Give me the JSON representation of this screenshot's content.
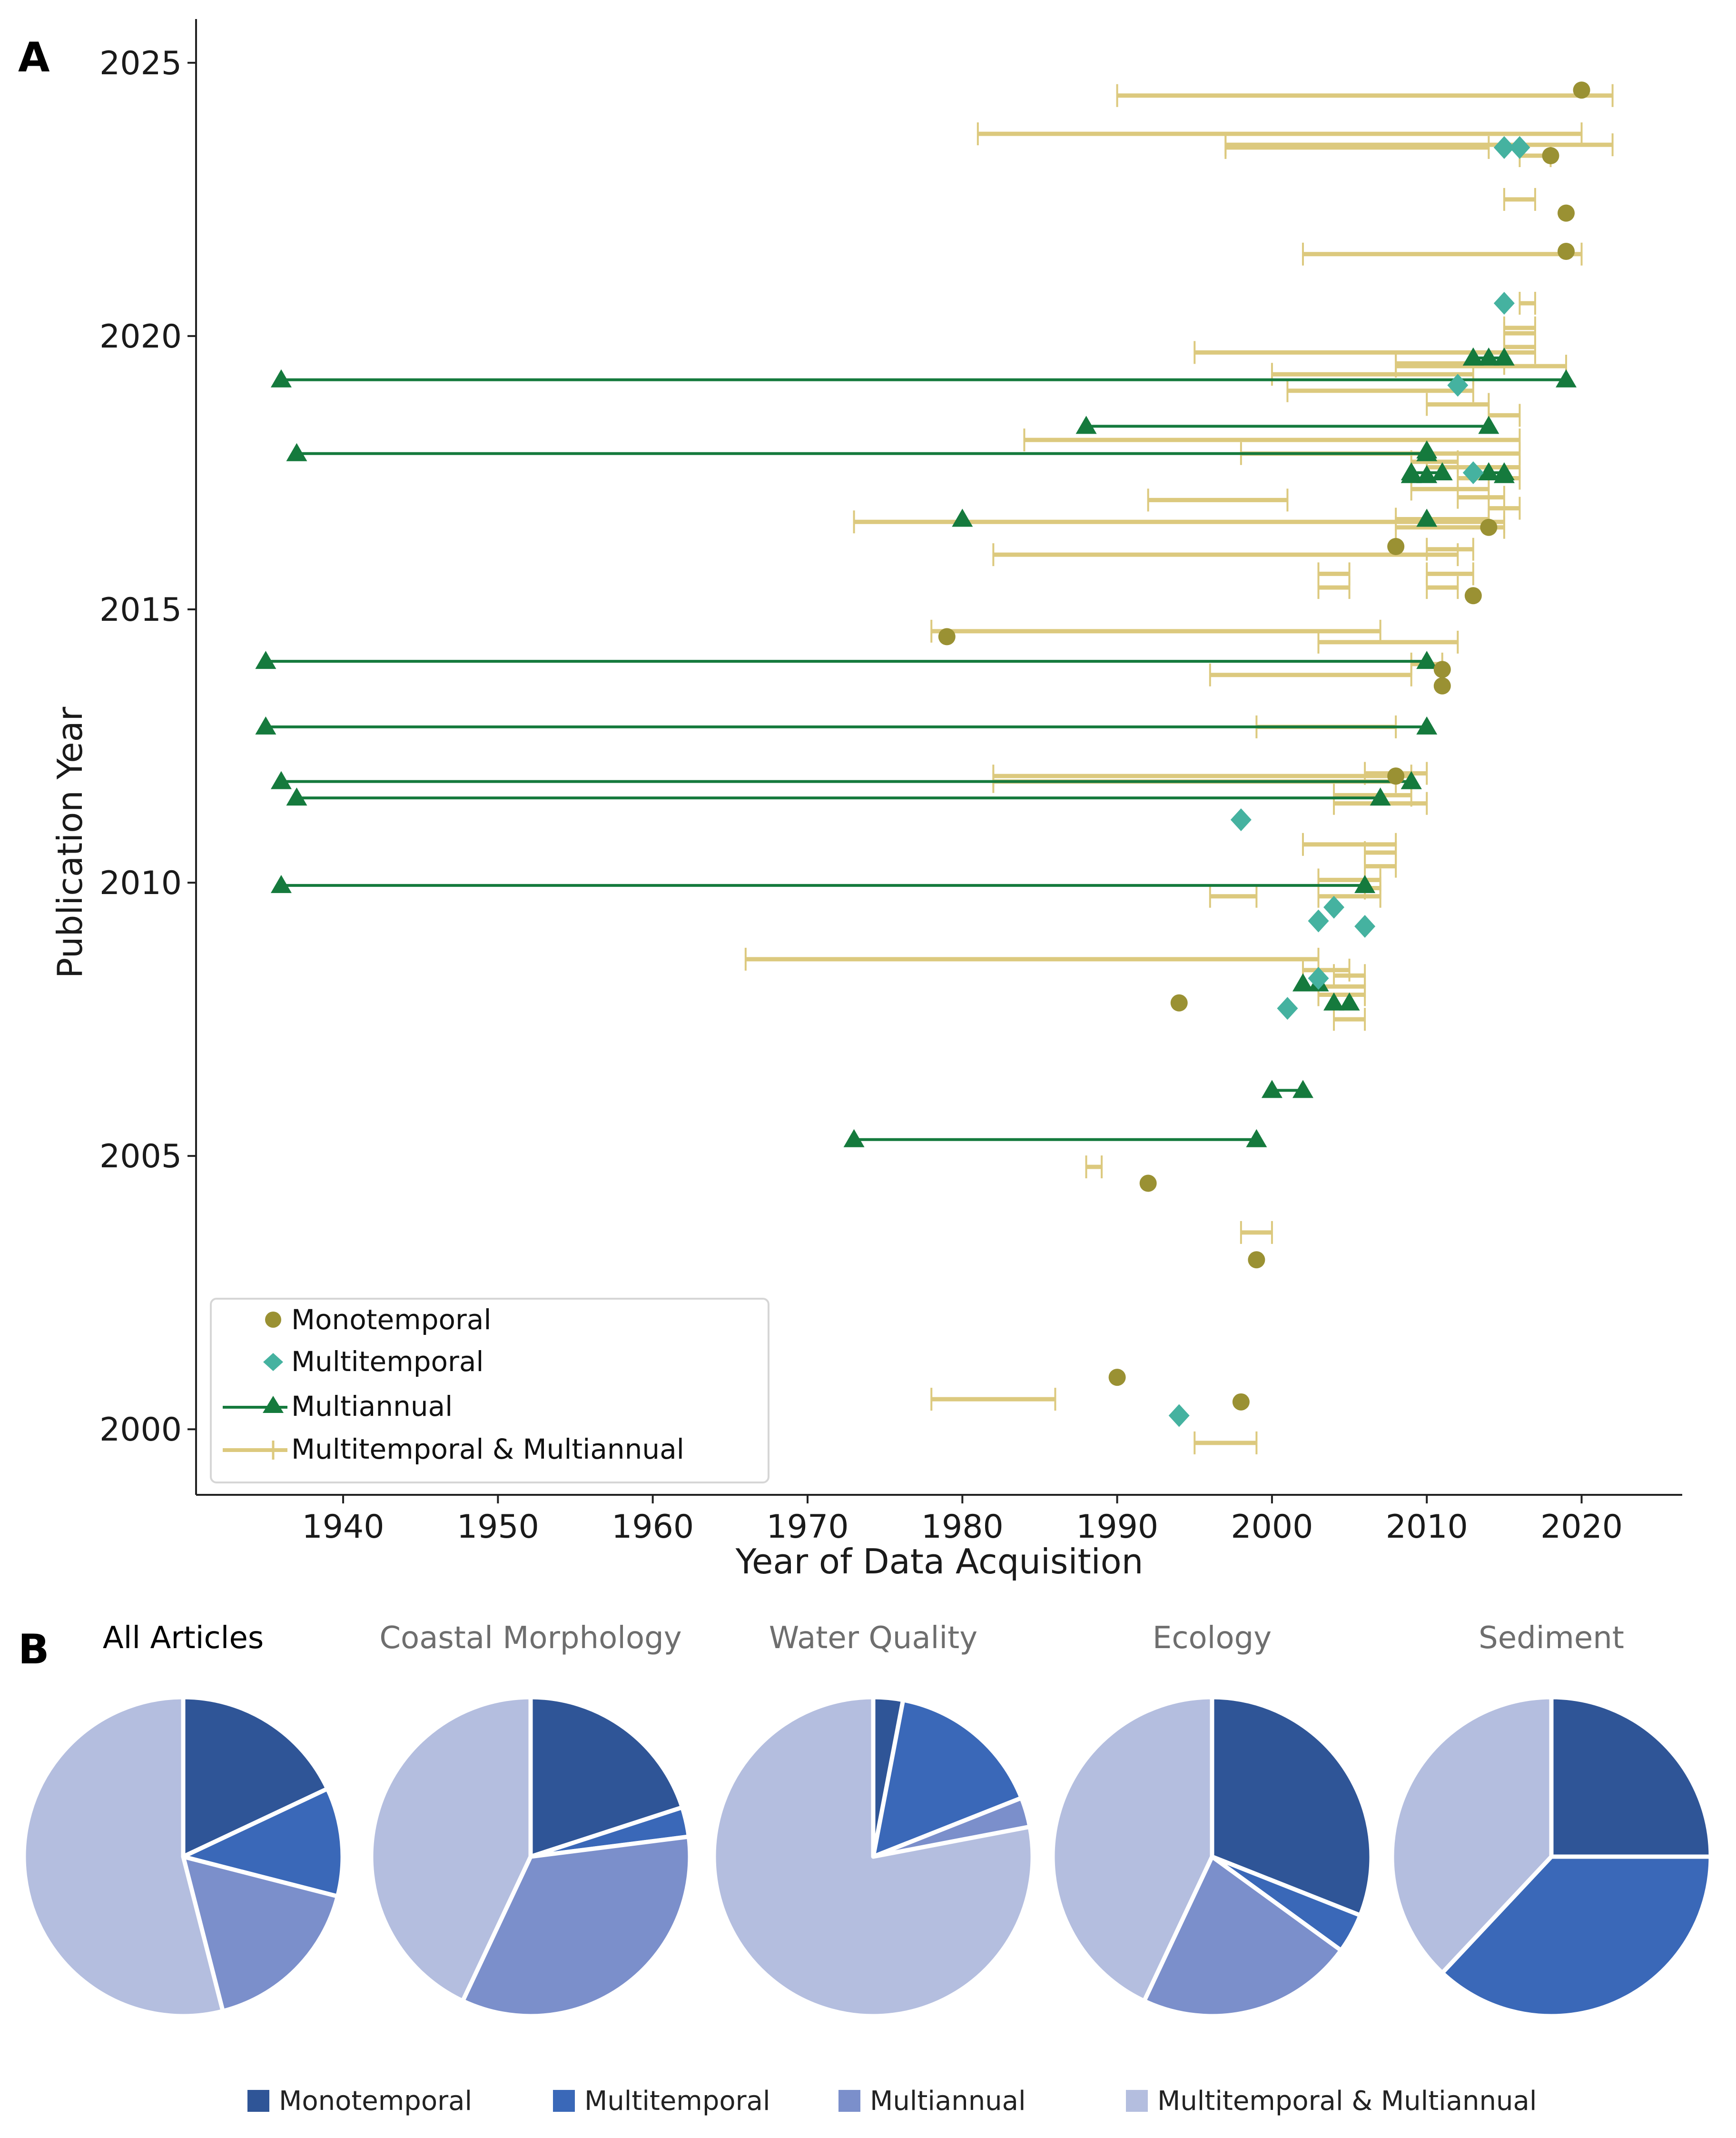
{
  "panels": {
    "a": "A",
    "b": "B"
  },
  "chart_data": [
    {
      "type": "scatter",
      "panel": "A",
      "xlabel": "Year of Data Acquisition",
      "ylabel": "Publication Year",
      "xlim": [
        1930.5,
        2026.5
      ],
      "ylim": [
        1998.8,
        2025.8
      ],
      "xticks": [
        1940,
        1950,
        1960,
        1970,
        1980,
        1990,
        2000,
        2010,
        2020
      ],
      "yticks": [
        2000,
        2005,
        2010,
        2015,
        2020,
        2025
      ],
      "legend": {
        "position": "bottom-left",
        "entries": [
          {
            "key": "mono",
            "label": "Monotemporal"
          },
          {
            "key": "multi",
            "label": "Multitemporal"
          },
          {
            "key": "annual",
            "label": "Multiannual"
          },
          {
            "key": "both",
            "label": "Multitemporal & Multiannual"
          }
        ]
      },
      "colors": {
        "mono": "#9a9133",
        "multi": "#45b2a0",
        "annual": "#157a3d",
        "both": "#dcc97e"
      },
      "series": {
        "mono": [
          [
            2020,
            2024.5
          ],
          [
            2018,
            2023.3
          ],
          [
            2019,
            2022.25
          ],
          [
            2019,
            2021.55
          ],
          [
            2008,
            2016.15
          ],
          [
            2014,
            2016.5
          ],
          [
            2013,
            2015.25
          ],
          [
            1979,
            2014.5
          ],
          [
            2011,
            2013.9
          ],
          [
            2011,
            2013.6
          ],
          [
            2008,
            2011.95
          ],
          [
            1994,
            2007.8
          ],
          [
            1992,
            2004.5
          ],
          [
            1999,
            2003.1
          ],
          [
            1990,
            2000.95
          ],
          [
            1998,
            2000.5
          ]
        ],
        "multi": [
          [
            2015,
            2023.45
          ],
          [
            2016,
            2023.45
          ],
          [
            2015,
            2020.6
          ],
          [
            2012,
            2019.1
          ],
          [
            2013,
            2017.5
          ],
          [
            1998,
            2011.15
          ],
          [
            2004,
            2009.55
          ],
          [
            2003,
            2009.3
          ],
          [
            2006,
            2009.2
          ],
          [
            2003,
            2008.25
          ],
          [
            2001,
            2007.7
          ],
          [
            1994,
            2000.25
          ]
        ],
        "annual_ranges": [
          [
            1936,
            2019,
            2019.2
          ],
          [
            1988,
            2014,
            2018.35
          ],
          [
            1937,
            2010,
            2017.85
          ],
          [
            1935,
            2010,
            2014.05
          ],
          [
            1935,
            2010,
            2012.85
          ],
          [
            1936,
            2009,
            2011.85
          ],
          [
            1937,
            2007,
            2011.55
          ],
          [
            1936,
            2006,
            2009.95
          ],
          [
            1973,
            1999,
            2005.3
          ],
          [
            2000,
            2002,
            2006.2
          ],
          [
            2009,
            2011,
            2017.5
          ],
          [
            2013,
            2015,
            2019.6
          ],
          [
            2014,
            2015,
            2017.5
          ]
        ],
        "annual_points": [
          [
            1980,
            2016.65
          ],
          [
            2010,
            2016.65
          ],
          [
            2013,
            2019.6
          ],
          [
            2014,
            2019.6
          ],
          [
            2009,
            2017.45
          ],
          [
            2010,
            2017.45
          ],
          [
            2014,
            2017.5
          ],
          [
            2015,
            2017.45
          ],
          [
            2010,
            2017.9
          ],
          [
            2009,
            2011.85
          ],
          [
            2002,
            2008.15
          ],
          [
            2003,
            2008.15
          ],
          [
            2004,
            2007.8
          ],
          [
            2005,
            2007.8
          ]
        ],
        "both": [
          [
            1990,
            2022,
            2024.4
          ],
          [
            1981,
            2020,
            2023.7
          ],
          [
            1997,
            2022,
            2023.5
          ],
          [
            1997,
            2014,
            2023.45
          ],
          [
            2015,
            2017,
            2022.5
          ],
          [
            2016,
            2018,
            2023.3
          ],
          [
            2002,
            2020,
            2021.5
          ],
          [
            2016,
            2017,
            2020.6
          ],
          [
            2015,
            2017,
            2020.15
          ],
          [
            2015,
            2017,
            2020.05
          ],
          [
            2015,
            2017,
            2019.8
          ],
          [
            1995,
            2017,
            2019.7
          ],
          [
            2008,
            2015,
            2019.5
          ],
          [
            2008,
            2019,
            2019.45
          ],
          [
            2000,
            2013,
            2019.3
          ],
          [
            2001,
            2013,
            2019.0
          ],
          [
            2010,
            2014,
            2018.75
          ],
          [
            2014,
            2016,
            2018.55
          ],
          [
            1984,
            2016,
            2018.1
          ],
          [
            1998,
            2016,
            2017.85
          ],
          [
            2009,
            2012,
            2017.7
          ],
          [
            2010,
            2016,
            2017.6
          ],
          [
            2012,
            2016,
            2017.4
          ],
          [
            2009,
            2014,
            2017.2
          ],
          [
            2012,
            2015,
            2017.05
          ],
          [
            1992,
            2001,
            2017.0
          ],
          [
            2014,
            2016,
            2016.85
          ],
          [
            1973,
            2015,
            2016.6
          ],
          [
            2008,
            2014,
            2016.65
          ],
          [
            2008,
            2015,
            2016.5
          ],
          [
            1982,
            2012,
            2016.0
          ],
          [
            2010,
            2013,
            2016.1
          ],
          [
            2003,
            2005,
            2015.65
          ],
          [
            2003,
            2005,
            2015.4
          ],
          [
            2010,
            2013,
            2015.65
          ],
          [
            2010,
            2012,
            2015.4
          ],
          [
            1978,
            2007,
            2014.6
          ],
          [
            2003,
            2012,
            2014.4
          ],
          [
            2009,
            2011,
            2014.0
          ],
          [
            1996,
            2009,
            2013.8
          ],
          [
            1999,
            2008,
            2012.85
          ],
          [
            1982,
            2009,
            2011.95
          ],
          [
            1982,
            2008,
            2011.85
          ],
          [
            2006,
            2010,
            2012.0
          ],
          [
            2004,
            2009,
            2011.6
          ],
          [
            2004,
            2010,
            2011.45
          ],
          [
            2002,
            2008,
            2010.7
          ],
          [
            2006,
            2008,
            2010.55
          ],
          [
            2006,
            2008,
            2010.3
          ],
          [
            2003,
            2007,
            2010.05
          ],
          [
            2006,
            2007,
            2009.9
          ],
          [
            2003,
            2007,
            2009.75
          ],
          [
            1996,
            1999,
            2009.75
          ],
          [
            1966,
            2003,
            2008.6
          ],
          [
            2002,
            2005,
            2008.4
          ],
          [
            2004,
            2006,
            2008.3
          ],
          [
            2003,
            2006,
            2008.1
          ],
          [
            2003,
            2006,
            2007.95
          ],
          [
            2004,
            2006,
            2007.5
          ],
          [
            1988,
            1989,
            2004.8
          ],
          [
            1998,
            2000,
            2003.6
          ],
          [
            1978,
            1986,
            2000.55
          ],
          [
            1995,
            1999,
            1999.75
          ]
        ]
      }
    },
    {
      "type": "pie",
      "panel": "B",
      "legend_position": "bottom",
      "categories": [
        "Monotemporal",
        "Multitemporal",
        "Multiannual",
        "Multitemporal & Multiannual"
      ],
      "colors": [
        "#2f5597",
        "#3a68b8",
        "#7b8fcb",
        "#b4bedf"
      ],
      "pies": [
        {
          "title": "All Articles",
          "values": [
            18,
            11,
            17,
            54
          ]
        },
        {
          "title": "Coastal Morphology",
          "values": [
            20,
            3,
            34,
            43
          ]
        },
        {
          "title": "Water Quality",
          "values": [
            3,
            16,
            3,
            78
          ]
        },
        {
          "title": "Ecology",
          "values": [
            31,
            4,
            22,
            43
          ]
        },
        {
          "title": "Sediment",
          "values": [
            25,
            37,
            0,
            38
          ]
        }
      ]
    }
  ]
}
